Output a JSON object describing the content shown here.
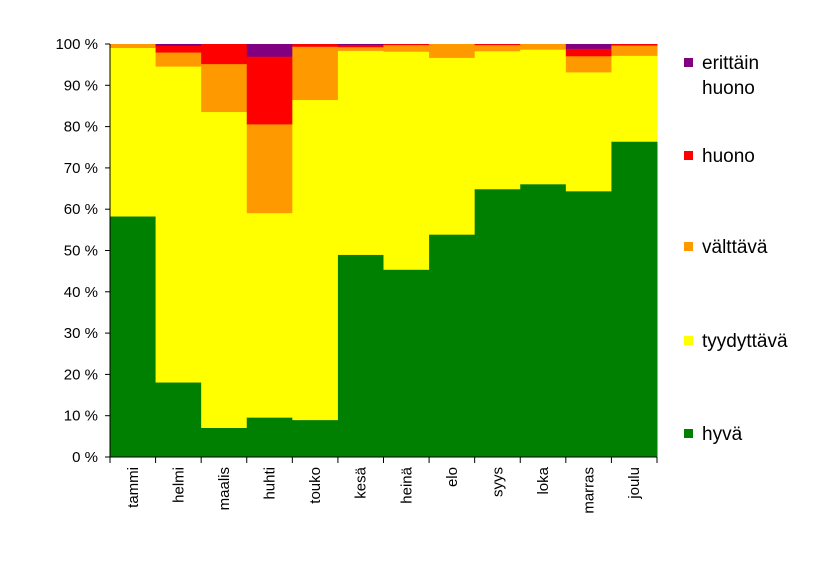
{
  "chart_data": {
    "type": "bar",
    "stacked": true,
    "normalized_percent": true,
    "title": "",
    "xlabel": "",
    "ylabel": "",
    "ylim": [
      0,
      100
    ],
    "y_ticks": [
      "0 %",
      "10 %",
      "20 %",
      "30 %",
      "40 %",
      "50 %",
      "60 %",
      "70 %",
      "80 %",
      "90 %",
      "100 %"
    ],
    "grid": false,
    "legend_position": "right",
    "categories": [
      "tammi",
      "helmi",
      "maalis",
      "huhti",
      "touko",
      "kesä",
      "heinä",
      "elo",
      "syys",
      "loka",
      "marras",
      "joulu"
    ],
    "series": [
      {
        "name": "hyvä",
        "color": "#008000",
        "values": [
          58.3,
          18.1,
          7.1,
          9.6,
          9.0,
          49.0,
          45.4,
          53.9,
          64.9,
          66.1,
          64.4,
          76.4
        ]
      },
      {
        "name": "tyydyttävä",
        "color": "#ffff00",
        "values": [
          40.8,
          76.5,
          76.5,
          49.5,
          77.5,
          49.4,
          52.8,
          42.8,
          33.4,
          32.6,
          28.8,
          20.8
        ]
      },
      {
        "name": "välttävä",
        "color": "#ff9900",
        "values": [
          0.9,
          3.4,
          11.6,
          21.5,
          12.9,
          0.9,
          1.6,
          3.3,
          1.5,
          1.3,
          3.9,
          2.5
        ]
      },
      {
        "name": "huono",
        "color": "#ff0000",
        "values": [
          0.0,
          1.6,
          4.8,
          16.4,
          0.6,
          0.5,
          0.2,
          0.0,
          0.2,
          0.0,
          1.8,
          0.3
        ]
      },
      {
        "name": "erittäin huono",
        "color": "#800080",
        "values": [
          0.0,
          0.4,
          0.0,
          3.0,
          0.0,
          0.2,
          0.0,
          0.0,
          0.0,
          0.0,
          1.1,
          0.0
        ]
      }
    ],
    "legend_entries": [
      {
        "lines": [
          "erittäin",
          "huono"
        ],
        "color": "#800080"
      },
      {
        "lines": [
          "huono"
        ],
        "color": "#ff0000"
      },
      {
        "lines": [
          "välttävä"
        ],
        "color": "#ff9900"
      },
      {
        "lines": [
          "tyydyttävä"
        ],
        "color": "#ffff00"
      },
      {
        "lines": [
          "hyvä"
        ],
        "color": "#008000"
      }
    ]
  }
}
